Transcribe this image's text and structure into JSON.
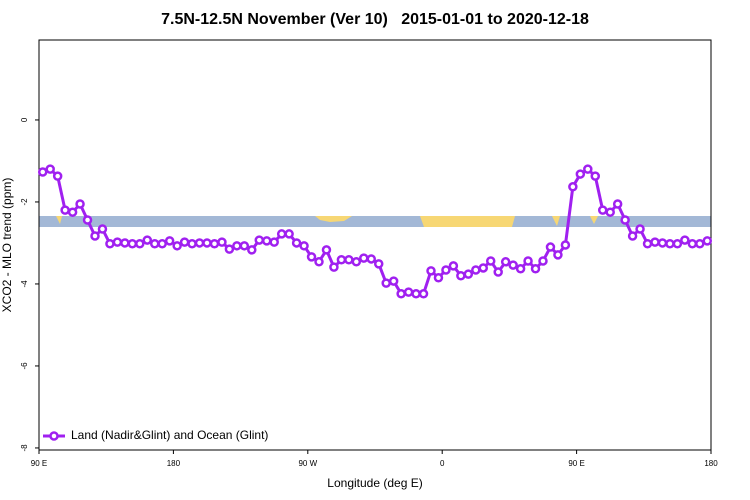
{
  "chart_data": {
    "type": "line",
    "title": "7.5N-12.5N November (Ver 10)   2015-01-01 to 2020-12-18",
    "x_label": "Longitude (deg E)",
    "y_label": "XCO2 - MLO trend (ppm)",
    "x": [
      92.5,
      97.5,
      102.5,
      107.5,
      112.5,
      117.5,
      122.5,
      127.5,
      132.5,
      137.5,
      142.5,
      147.5,
      152.5,
      157.5,
      162.5,
      167.5,
      172.5,
      177.5,
      182.5,
      187.5,
      192.5,
      197.5,
      202.5,
      207.5,
      212.5,
      217.5,
      222.5,
      227.5,
      232.5,
      237.5,
      242.5,
      247.5,
      252.5,
      257.5,
      262.5,
      267.5,
      272.5,
      277.5,
      282.5,
      287.5,
      292.5,
      297.5,
      302.5,
      307.5,
      312.5,
      317.5,
      322.5,
      327.5,
      332.5,
      337.5,
      342.5,
      347.5,
      352.5,
      357.5,
      362.5,
      367.5,
      372.5,
      377.5,
      382.5,
      387.5,
      392.5,
      397.5,
      402.5,
      407.5,
      412.5,
      417.5,
      422.5,
      427.5,
      432.5,
      437.5,
      442.5,
      447.5,
      452.5,
      457.5,
      462.5,
      467.5,
      472.5,
      477.5,
      482.5,
      487.5,
      492.5,
      497.5,
      502.5,
      507.5,
      512.5,
      517.5,
      522.5,
      527.5,
      532.5,
      537.5
    ],
    "series": [
      {
        "name": "Land (Nadir&Glint) and Ocean (Glint)",
        "color": "#a020f0",
        "values": [
          -1.27,
          -1.2,
          -1.37,
          -2.2,
          -2.25,
          -2.05,
          -2.44,
          -2.83,
          -2.66,
          -3.02,
          -2.98,
          -3.0,
          -3.02,
          -3.02,
          -2.93,
          -3.02,
          -3.02,
          -2.95,
          -3.07,
          -2.98,
          -3.02,
          -3.0,
          -3.0,
          -3.02,
          -2.98,
          -3.15,
          -3.07,
          -3.07,
          -3.17,
          -2.93,
          -2.95,
          -2.98,
          -2.78,
          -2.78,
          -3.0,
          -3.07,
          -3.34,
          -3.46,
          -3.17,
          -3.59,
          -3.41,
          -3.41,
          -3.46,
          -3.37,
          -3.39,
          -3.51,
          -3.98,
          -3.93,
          -4.24,
          -4.2,
          -4.24,
          -4.24,
          -3.68,
          -3.85,
          -3.66,
          -3.56,
          -3.8,
          -3.76,
          -3.66,
          -3.61,
          -3.44,
          -3.71,
          -3.46,
          -3.54,
          -3.63,
          -3.44,
          -3.63,
          -3.44,
          -3.1,
          -3.29,
          -3.05,
          -1.63,
          -1.32,
          -1.2,
          -1.37,
          -2.2,
          -2.25,
          -2.05,
          -2.44,
          -2.83,
          -2.66,
          -3.02,
          -2.98,
          -3.0,
          -3.02,
          -3.02,
          -2.93,
          -3.02,
          -3.02,
          -2.95
        ]
      }
    ],
    "xlim": [
      90,
      540
    ],
    "xticks": [
      {
        "value": 90,
        "label": "90 E"
      },
      {
        "value": 180,
        "label": "180"
      },
      {
        "value": 270,
        "label": "90 W"
      },
      {
        "value": 360,
        "label": "0"
      },
      {
        "value": 450,
        "label": "90 E"
      },
      {
        "value": 540,
        "label": "180"
      }
    ],
    "ylim": [
      -8.05,
      1.95
    ],
    "yticks": [
      0,
      -2,
      -4,
      -6,
      -8
    ],
    "legend": "bottom-left"
  }
}
